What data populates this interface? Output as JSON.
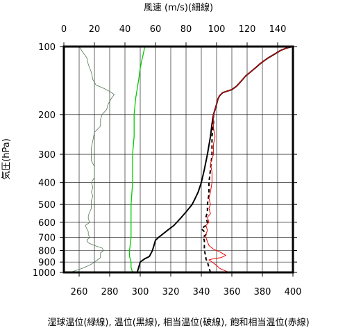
{
  "chart_data": {
    "type": "line",
    "title": "",
    "top_axis": {
      "label": "風速 (m/s)(細線)",
      "range": [
        0,
        150
      ],
      "ticks": [
        0,
        20,
        40,
        60,
        80,
        100,
        120,
        140
      ]
    },
    "bottom_axis": {
      "range": [
        250,
        400
      ],
      "ticks": [
        260,
        280,
        300,
        320,
        340,
        360,
        380,
        400
      ]
    },
    "y_axis": {
      "label": "気圧(hPa)",
      "scale": "log",
      "inverted": true,
      "range": [
        1000,
        100
      ],
      "ticks": [
        100,
        200,
        300,
        400,
        500,
        600,
        700,
        800,
        900,
        1000
      ]
    },
    "caption": "湿球温位(緑線), 温位(黒線), 相当温位(破線), 飽和相当温位(赤線)",
    "grid": true,
    "series": [
      {
        "axis": "bottom",
        "color": "#00cc00",
        "style": "solid",
        "points": [
          [
            295,
            1000
          ],
          [
            294,
            950
          ],
          [
            294,
            900
          ],
          [
            293,
            850
          ],
          [
            293,
            800
          ],
          [
            294,
            700
          ],
          [
            294,
            600
          ],
          [
            294,
            500
          ],
          [
            295,
            400
          ],
          [
            295,
            300
          ],
          [
            296,
            250
          ],
          [
            296,
            200
          ],
          [
            297,
            170
          ],
          [
            299,
            140
          ],
          [
            300,
            125
          ],
          [
            301,
            115
          ],
          [
            302,
            108
          ],
          [
            303,
            100
          ]
        ]
      },
      {
        "axis": "bottom",
        "color": "#000000",
        "style": "solid",
        "points": [
          [
            298,
            1000
          ],
          [
            299,
            950
          ],
          [
            300,
            900
          ],
          [
            303,
            870
          ],
          [
            306,
            850
          ],
          [
            308,
            800
          ],
          [
            310,
            720
          ],
          [
            312,
            700
          ],
          [
            318,
            650
          ],
          [
            322,
            620
          ],
          [
            326,
            580
          ],
          [
            330,
            540
          ],
          [
            334,
            500
          ],
          [
            336,
            470
          ],
          [
            338,
            440
          ],
          [
            340,
            400
          ],
          [
            342,
            350
          ],
          [
            344,
            300
          ],
          [
            346,
            250
          ],
          [
            347,
            220
          ],
          [
            348,
            200
          ],
          [
            349,
            190
          ],
          [
            350,
            180
          ],
          [
            351,
            170
          ],
          [
            352,
            165
          ],
          [
            354,
            160
          ],
          [
            360,
            155
          ],
          [
            363,
            150
          ],
          [
            365,
            145
          ],
          [
            367,
            140
          ],
          [
            369,
            135
          ],
          [
            372,
            130
          ],
          [
            375,
            125
          ],
          [
            378,
            120
          ],
          [
            380,
            117
          ],
          [
            384,
            112
          ],
          [
            386,
            110
          ],
          [
            389,
            107
          ],
          [
            392,
            104
          ],
          [
            395,
            102
          ],
          [
            397,
            101
          ],
          [
            400,
            100
          ]
        ]
      },
      {
        "axis": "bottom",
        "color": "#000000",
        "style": "dashed",
        "points": [
          [
            346,
            1000
          ],
          [
            345,
            950
          ],
          [
            344,
            900
          ],
          [
            343,
            870
          ],
          [
            343,
            850
          ],
          [
            342,
            800
          ],
          [
            342,
            760
          ],
          [
            342,
            720
          ],
          [
            341,
            700
          ],
          [
            343,
            680
          ],
          [
            342,
            660
          ],
          [
            340,
            640
          ],
          [
            343,
            620
          ],
          [
            344,
            600
          ],
          [
            343,
            570
          ],
          [
            344,
            540
          ],
          [
            344,
            500
          ],
          [
            345,
            450
          ],
          [
            345,
            400
          ],
          [
            346,
            350
          ],
          [
            347,
            300
          ],
          [
            347,
            250
          ],
          [
            348,
            220
          ],
          [
            348,
            200
          ],
          [
            349,
            190
          ]
        ]
      },
      {
        "axis": "bottom",
        "color": "#ee0000",
        "style": "solid",
        "points": [
          [
            358,
            1000
          ],
          [
            352,
            960
          ],
          [
            350,
            930
          ],
          [
            347,
            900
          ],
          [
            345,
            880
          ],
          [
            348,
            870
          ],
          [
            353,
            860
          ],
          [
            356,
            840
          ],
          [
            352,
            810
          ],
          [
            348,
            790
          ],
          [
            345,
            760
          ],
          [
            344,
            730
          ],
          [
            343,
            700
          ],
          [
            343,
            680
          ],
          [
            344,
            650
          ],
          [
            343,
            620
          ],
          [
            345,
            600
          ],
          [
            344,
            570
          ],
          [
            346,
            550
          ],
          [
            345,
            520
          ],
          [
            346,
            500
          ],
          [
            345,
            470
          ],
          [
            346,
            440
          ],
          [
            347,
            400
          ],
          [
            347,
            360
          ],
          [
            346,
            330
          ],
          [
            348,
            300
          ],
          [
            348,
            270
          ],
          [
            349,
            250
          ],
          [
            348,
            230
          ],
          [
            348,
            210
          ],
          [
            348,
            200
          ],
          [
            349,
            190
          ],
          [
            350,
            180
          ],
          [
            351,
            170
          ],
          [
            352,
            165
          ],
          [
            354,
            160
          ],
          [
            360,
            155
          ],
          [
            363,
            150
          ],
          [
            365,
            145
          ],
          [
            367,
            140
          ],
          [
            369,
            135
          ],
          [
            372,
            130
          ],
          [
            375,
            125
          ],
          [
            378,
            120
          ],
          [
            380,
            117
          ],
          [
            384,
            112
          ],
          [
            386,
            110
          ],
          [
            389,
            107
          ],
          [
            392,
            104
          ],
          [
            395,
            102
          ],
          [
            397,
            101
          ],
          [
            400,
            100
          ]
        ]
      },
      {
        "axis": "top",
        "color": "#557755",
        "style": "thin",
        "points": [
          [
            4,
            1000
          ],
          [
            8,
            980
          ],
          [
            12,
            960
          ],
          [
            15,
            940
          ],
          [
            18,
            920
          ],
          [
            20,
            900
          ],
          [
            22,
            880
          ],
          [
            24,
            860
          ],
          [
            24,
            840
          ],
          [
            24,
            820
          ],
          [
            26,
            800
          ],
          [
            25,
            780
          ],
          [
            20,
            760
          ],
          [
            16,
            740
          ],
          [
            15,
            720
          ],
          [
            17,
            700
          ],
          [
            16,
            680
          ],
          [
            16,
            660
          ],
          [
            15,
            640
          ],
          [
            14,
            620
          ],
          [
            17,
            600
          ],
          [
            16,
            580
          ],
          [
            16,
            560
          ],
          [
            17,
            540
          ],
          [
            18,
            520
          ],
          [
            18,
            500
          ],
          [
            18,
            480
          ],
          [
            19,
            460
          ],
          [
            18,
            440
          ],
          [
            19,
            420
          ],
          [
            18,
            400
          ],
          [
            20,
            380
          ],
          [
            20,
            360
          ],
          [
            20,
            340
          ],
          [
            18,
            320
          ],
          [
            18,
            300
          ],
          [
            18,
            280
          ],
          [
            19,
            260
          ],
          [
            20,
            240
          ],
          [
            24,
            225
          ],
          [
            24,
            210
          ],
          [
            25,
            200
          ],
          [
            28,
            190
          ],
          [
            29,
            180
          ],
          [
            31,
            170
          ],
          [
            33,
            163
          ],
          [
            30,
            158
          ],
          [
            26,
            153
          ],
          [
            21,
            148
          ],
          [
            19,
            140
          ],
          [
            18,
            130
          ],
          [
            16,
            120
          ],
          [
            15,
            112
          ],
          [
            12,
            105
          ],
          [
            10,
            100
          ]
        ]
      }
    ]
  }
}
